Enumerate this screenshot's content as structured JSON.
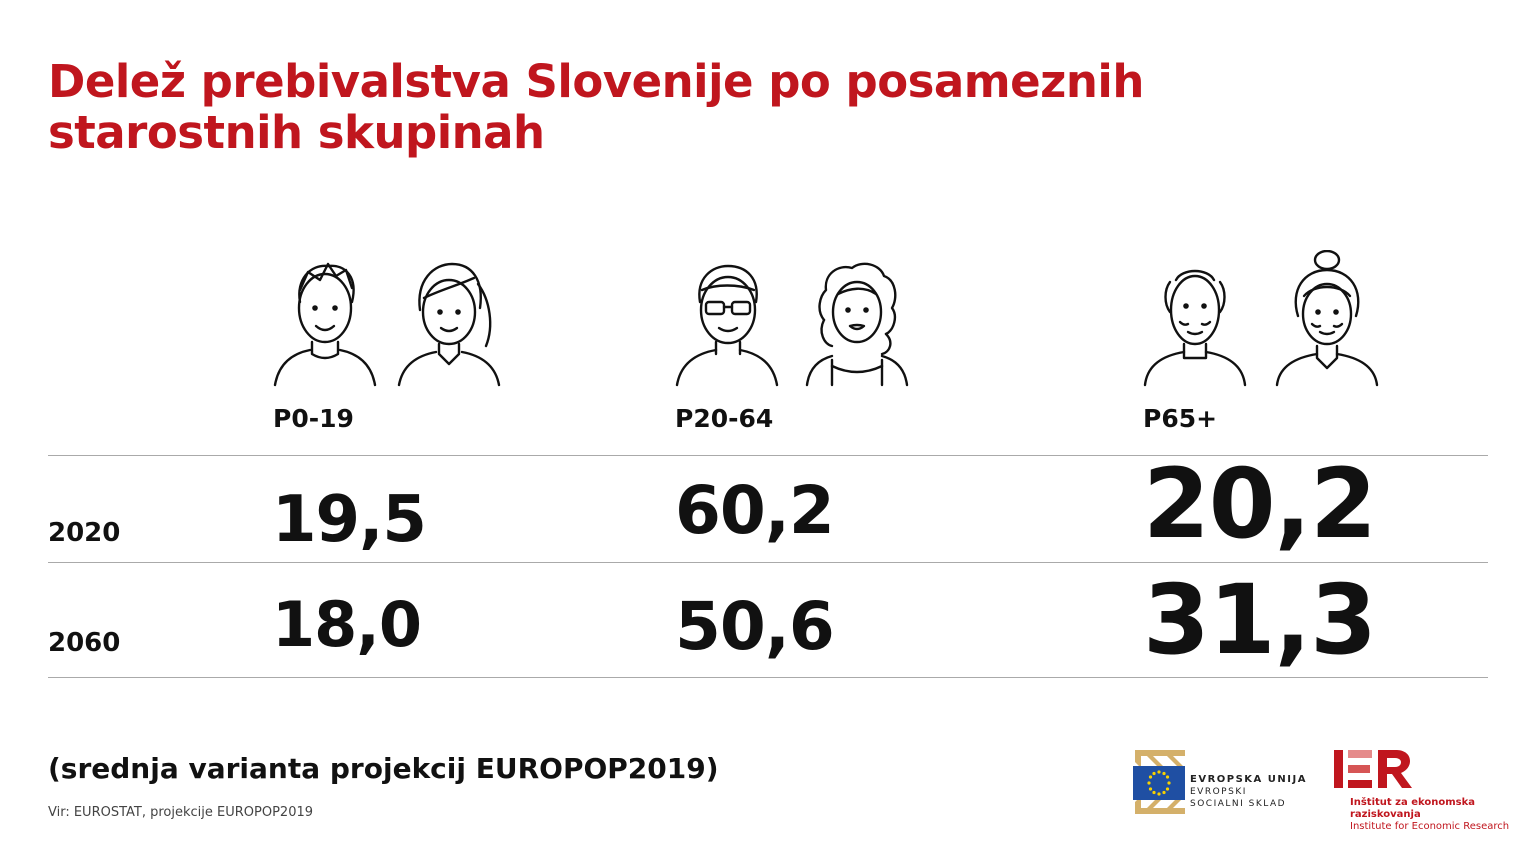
{
  "accent": "#c0161e",
  "title": "Delež prebivalstva Slovenije po posameznih starostnih skupinah",
  "footnote": "(srednja varianta projekcij EUROPOP2019)",
  "source": "Vir: EUROSTAT, projekcije EUROPOP2019",
  "logos": {
    "eu_line1": "EVROPSKA UNIJA",
    "eu_line2": "EVROPSKI",
    "eu_line3": "SOCIALNI SKLAD",
    "ier_mark": "IER",
    "ier_line1": "Inštitut za ekonomska raziskovanja",
    "ier_line2": "Institute for Economic Research"
  },
  "chart_data": {
    "type": "table",
    "title": "Delež prebivalstva Slovenije po posameznih starostnih skupinah",
    "columns": [
      "P0-19",
      "P20-64",
      "P65+"
    ],
    "rows": [
      {
        "year": "2020",
        "values": [
          "19,5",
          "60,2",
          "20,2"
        ]
      },
      {
        "year": "2060",
        "values": [
          "18,0",
          "50,6",
          "31,3"
        ]
      }
    ],
    "icons": [
      [
        "young-man-icon",
        "young-woman-icon"
      ],
      [
        "adult-man-glasses-icon",
        "adult-woman-curly-icon"
      ],
      [
        "elderly-man-icon",
        "elderly-woman-bun-icon"
      ]
    ]
  }
}
